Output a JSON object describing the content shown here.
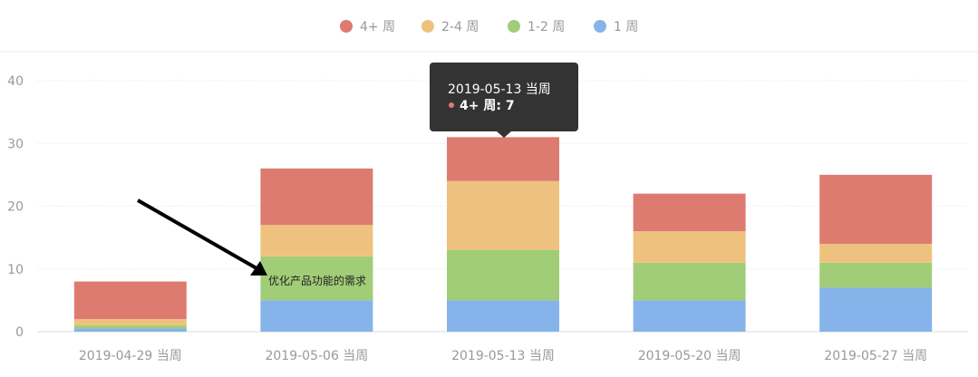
{
  "chart_data": {
    "type": "bar",
    "stacked": true,
    "categories": [
      "2019-04-29 当周",
      "2019-05-06 当周",
      "2019-05-13 当周",
      "2019-05-20 当周",
      "2019-05-27 当周"
    ],
    "series": [
      {
        "name": "1 周",
        "color": "#86b4ea",
        "values": [
          0.5,
          5,
          5,
          5,
          7
        ]
      },
      {
        "name": "1-2 周",
        "color": "#a1cd78",
        "values": [
          0.5,
          7,
          8,
          6,
          4
        ]
      },
      {
        "name": "2-4 周",
        "color": "#eec27e",
        "values": [
          1,
          5,
          11,
          5,
          3
        ]
      },
      {
        "name": "4+ 周",
        "color": "#de7b70",
        "values": [
          6,
          9,
          7,
          6,
          11
        ]
      }
    ],
    "legend_order": [
      "4+ 周",
      "2-4 周",
      "1-2 周",
      "1 周"
    ],
    "ylim": [
      0,
      40
    ],
    "yticks": [
      0,
      10,
      20,
      30,
      40
    ],
    "grid": true,
    "legend_position": "top-center",
    "tooltip": {
      "category_index": 2,
      "title": "2019-05-13 当周",
      "series": "4+ 周",
      "text": "4+ 周: 7",
      "color": "#de7b70"
    },
    "annotation": {
      "text": "优化产品功能的需求",
      "category_index": 1
    }
  }
}
